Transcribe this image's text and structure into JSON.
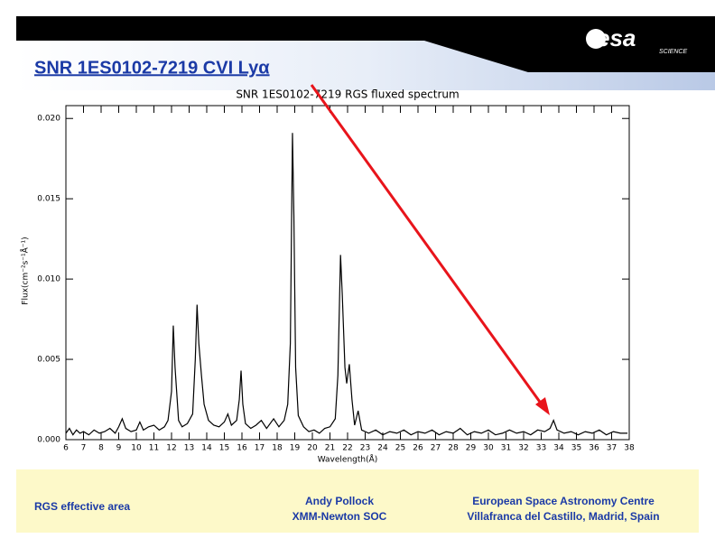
{
  "header": {
    "title": "SNR 1ES0102-7219 CVI Lyα",
    "logo": "esa",
    "logo_sub": "SCIENCE"
  },
  "chart_data": {
    "type": "line",
    "title": "SNR 1ES0102-7219 RGS fluxed spectrum",
    "x_label": "Wavelength(Å)",
    "y_label": "Flux(cm⁻²s⁻¹Å⁻¹)",
    "x": [
      6,
      6.2,
      6.4,
      6.6,
      6.8,
      7,
      7.3,
      7.6,
      7.9,
      8.2,
      8.5,
      8.8,
      9.0,
      9.2,
      9.4,
      9.7,
      10.0,
      10.2,
      10.4,
      10.7,
      11.0,
      11.3,
      11.6,
      11.8,
      12.0,
      12.1,
      12.2,
      12.4,
      12.6,
      12.9,
      13.2,
      13.35,
      13.45,
      13.55,
      13.7,
      13.85,
      14.1,
      14.4,
      14.7,
      15.0,
      15.2,
      15.4,
      15.7,
      15.85,
      15.95,
      16.05,
      16.2,
      16.5,
      16.8,
      17.1,
      17.4,
      17.8,
      18.1,
      18.4,
      18.6,
      18.75,
      18.87,
      18.95,
      19.05,
      19.2,
      19.5,
      19.8,
      20.1,
      20.4,
      20.7,
      21.0,
      21.3,
      21.45,
      21.6,
      21.7,
      21.85,
      21.95,
      22.1,
      22.25,
      22.4,
      22.6,
      22.8,
      23.2,
      23.6,
      24.0,
      24.4,
      24.8,
      25.2,
      25.6,
      26.0,
      26.4,
      26.8,
      27.2,
      27.6,
      28.0,
      28.4,
      28.8,
      29.2,
      29.6,
      30.0,
      30.4,
      30.8,
      31.2,
      31.6,
      32.0,
      32.4,
      32.8,
      33.2,
      33.5,
      33.7,
      33.9,
      34.3,
      34.7,
      35.1,
      35.5,
      35.9,
      36.3,
      36.7,
      37.1,
      37.5,
      37.9
    ],
    "series": [
      {
        "color": "#000000",
        "values": [
          0.0004,
          0.0007,
          0.0003,
          0.0006,
          0.0004,
          0.0005,
          0.0003,
          0.0006,
          0.0004,
          0.0005,
          0.0007,
          0.0004,
          0.0008,
          0.0013,
          0.0007,
          0.0005,
          0.0006,
          0.0011,
          0.0006,
          0.0008,
          0.0009,
          0.0006,
          0.0008,
          0.0012,
          0.003,
          0.0071,
          0.0045,
          0.0012,
          0.0008,
          0.001,
          0.0016,
          0.005,
          0.0084,
          0.006,
          0.004,
          0.0022,
          0.0012,
          0.0009,
          0.0008,
          0.0011,
          0.0016,
          0.0009,
          0.0012,
          0.0025,
          0.0043,
          0.0022,
          0.001,
          0.0007,
          0.0009,
          0.0012,
          0.0007,
          0.0013,
          0.0008,
          0.0012,
          0.0022,
          0.006,
          0.0191,
          0.014,
          0.0045,
          0.0015,
          0.0008,
          0.0005,
          0.0006,
          0.0004,
          0.0007,
          0.0008,
          0.0013,
          0.004,
          0.0115,
          0.009,
          0.0045,
          0.0035,
          0.0047,
          0.0025,
          0.0009,
          0.0018,
          0.0006,
          0.0004,
          0.0006,
          0.0003,
          0.0005,
          0.0004,
          0.0006,
          0.0003,
          0.0005,
          0.0004,
          0.0006,
          0.0003,
          0.0005,
          0.0004,
          0.0007,
          0.0003,
          0.0005,
          0.0004,
          0.0006,
          0.0003,
          0.0004,
          0.0006,
          0.0004,
          0.0005,
          0.0003,
          0.0006,
          0.0005,
          0.0007,
          0.0012,
          0.0006,
          0.0004,
          0.0005,
          0.0003,
          0.0005,
          0.0004,
          0.0006,
          0.0003,
          0.0005,
          0.0004,
          0.0004
        ]
      }
    ],
    "xlim": [
      6,
      38
    ],
    "xticks": [
      6,
      7,
      8,
      9,
      10,
      11,
      12,
      13,
      14,
      15,
      16,
      17,
      18,
      19,
      20,
      21,
      22,
      23,
      24,
      25,
      26,
      27,
      28,
      29,
      30,
      31,
      32,
      33,
      34,
      35,
      36,
      37,
      38
    ],
    "ylim": [
      0,
      0.0208
    ],
    "yticks": [
      {
        "value": 0,
        "label": "0.000"
      },
      0.005,
      {
        "value": 0.01,
        "label": "0.010"
      },
      0.015,
      {
        "value": 0.02,
        "label": "0.020"
      }
    ],
    "grid": false
  },
  "footer": {
    "left": "RGS effective area",
    "center": [
      "Andy Pollock",
      "XMM-Newton SOC"
    ],
    "right": [
      "European Space Astronomy Centre",
      "Villafranca del Castillo, Madrid, Spain"
    ]
  }
}
